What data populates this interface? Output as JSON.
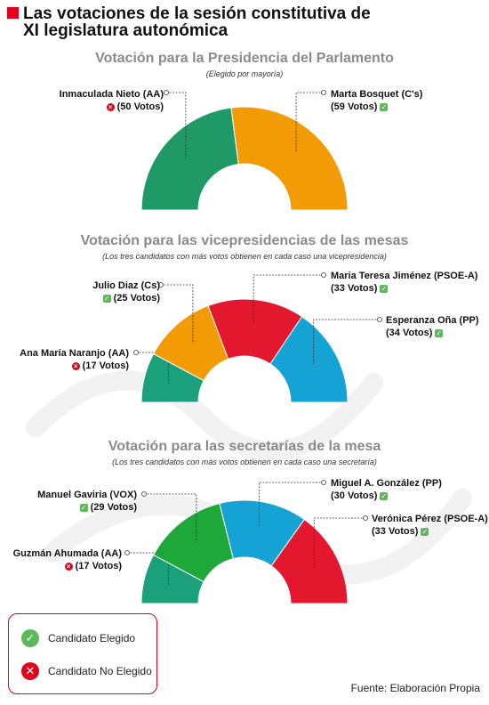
{
  "title": {
    "line1": "Las votaciones de la sesión constitutiva de",
    "line2": "XI legislatura autonómica"
  },
  "legend": {
    "elected": "Candidato Elegido",
    "not_elected": "Candidato No Elegido"
  },
  "source": "Fuente: Elaboración Propia",
  "chart_data": [
    {
      "type": "pie",
      "title": "Votación para la Presidencia del Parlamento",
      "subtitle": "(Elegido por mayoría)",
      "slices": [
        {
          "label": "Inmaculada Nieto (AA)",
          "votes_text": "(50 Votos)",
          "value": 50,
          "elected": false,
          "color": "#1f9a66"
        },
        {
          "label": "Marta Bosquet (C's)",
          "votes_text": "(59 Votos)",
          "value": 59,
          "elected": true,
          "color": "#f29b05"
        }
      ]
    },
    {
      "type": "pie",
      "title": "Votación para las vicepresidencias de las mesas",
      "subtitle": "(Los tres candidatos con más votos obtienen en cada caso una vicepresidencia)",
      "slices": [
        {
          "label": "Ana María Naranjo (AA)",
          "votes_text": "(17 Votos)",
          "value": 17,
          "elected": false,
          "color": "#1ba07c"
        },
        {
          "label": "Julio Diaz (Cs)",
          "votes_text": "(25 Votos)",
          "value": 25,
          "elected": true,
          "color": "#f29b05"
        },
        {
          "label": "Maria Teresa Jiménez (PSOE-A)",
          "votes_text": "(33 Votos)",
          "value": 33,
          "elected": true,
          "color": "#e3172d"
        },
        {
          "label": "Esperanza Oña (PP)",
          "votes_text": "(34 Votos)",
          "value": 34,
          "elected": true,
          "color": "#15a3d6"
        }
      ]
    },
    {
      "type": "pie",
      "title": "Votación para las secretarías de la mesa",
      "subtitle": "(Los tres candidatos con más votos obtienen en cada caso una secretaría)",
      "slices": [
        {
          "label": "Guzmán Ahumada (AA)",
          "votes_text": "(17 Votos)",
          "value": 17,
          "elected": false,
          "color": "#1ba07c"
        },
        {
          "label": "Manuel Gaviria (VOX)",
          "votes_text": "(29 Votos)",
          "value": 29,
          "elected": true,
          "color": "#1ea83a"
        },
        {
          "label": "Miguel A. González (PP)",
          "votes_text": "(30 Votos)",
          "value": 30,
          "elected": true,
          "color": "#15a3d6"
        },
        {
          "label": "Verónica Pérez (PSOE-A)",
          "votes_text": "(33 Votos)",
          "value": 33,
          "elected": true,
          "color": "#e3172d"
        }
      ]
    }
  ]
}
